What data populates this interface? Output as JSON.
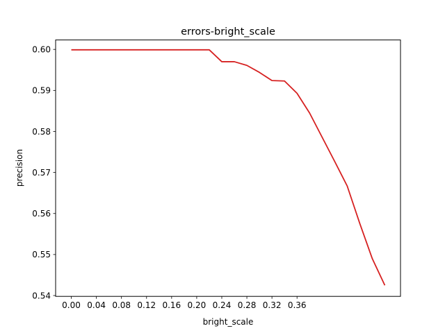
{
  "chart_data": {
    "type": "line",
    "title": "errors-bright_scale",
    "xlabel": "bright_scale",
    "ylabel": "precision",
    "xlim": [
      -0.025,
      0.525
    ],
    "ylim": [
      0.5398,
      0.6023
    ],
    "x_ticks": [
      "0.00",
      "0.04",
      "0.08",
      "0.12",
      "0.16",
      "0.20",
      "0.24",
      "0.28",
      "0.32",
      "0.36"
    ],
    "y_ticks": [
      "0.54",
      "0.55",
      "0.56",
      "0.57",
      "0.58",
      "0.59",
      "0.60"
    ],
    "grid": false,
    "legend": "none",
    "series": [
      {
        "color": "#d62020",
        "x": [
          0.0,
          0.02,
          0.04,
          0.06,
          0.08,
          0.1,
          0.12,
          0.14,
          0.16,
          0.18,
          0.2,
          0.22,
          0.24,
          0.26,
          0.28,
          0.3,
          0.32,
          0.34,
          0.36,
          0.38,
          0.4,
          0.42,
          0.44,
          0.46,
          0.48,
          0.5
        ],
        "values": [
          0.5999,
          0.5999,
          0.5999,
          0.5999,
          0.5999,
          0.5999,
          0.5999,
          0.5999,
          0.5999,
          0.5999,
          0.5999,
          0.5999,
          0.597,
          0.597,
          0.5961,
          0.5944,
          0.5924,
          0.5923,
          0.5893,
          0.5845,
          0.5786,
          0.5727,
          0.5667,
          0.5576,
          0.549,
          0.5425
        ]
      }
    ]
  }
}
